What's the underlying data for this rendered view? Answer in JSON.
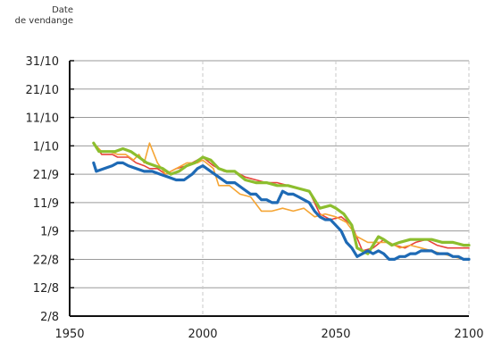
{
  "chart_data": {
    "type": "line",
    "title": "",
    "xlabel": "",
    "ylabel": [
      "Date",
      "de vendange"
    ],
    "xlim": [
      1950,
      2100
    ],
    "x_ticks": [
      1950,
      2000,
      2050,
      2100
    ],
    "ylim": [
      "2/8",
      "31/10"
    ],
    "y_ticks": [
      {
        "label": "2/8",
        "doy": 214
      },
      {
        "label": "12/8",
        "doy": 224
      },
      {
        "label": "22/8",
        "doy": 234
      },
      {
        "label": "1/9",
        "doy": 244
      },
      {
        "label": "11/9",
        "doy": 254
      },
      {
        "label": "21/9",
        "doy": 264
      },
      {
        "label": "1/10",
        "doy": 274
      },
      {
        "label": "11/10",
        "doy": 284
      },
      {
        "label": "21/10",
        "doy": 294
      },
      {
        "label": "31/10",
        "doy": 304
      }
    ],
    "grid": {
      "horizontal": true,
      "vertical": true
    },
    "series": [
      {
        "color": "#e8423a",
        "stroke": 1.6,
        "x": [
          1959,
          1962,
          1964,
          1966,
          1968,
          1970,
          1972,
          1975,
          1978,
          1980,
          1983,
          1986,
          1990,
          1994,
          1998,
          2000,
          2004,
          2008,
          2012,
          2016,
          2020,
          2024,
          2028,
          2032,
          2036,
          2040,
          2044,
          2048,
          2052,
          2056,
          2060,
          2064,
          2068,
          2072,
          2076,
          2080,
          2084,
          2088,
          2092,
          2096,
          2100
        ],
        "y": [
          275,
          271,
          271,
          271,
          270,
          270,
          270,
          268,
          267,
          266,
          266,
          264,
          266,
          267,
          269,
          270,
          267,
          265,
          265,
          263,
          262,
          261,
          261,
          260,
          259,
          258,
          250,
          248,
          249,
          246,
          237,
          238,
          241,
          239,
          238,
          240,
          241,
          239,
          238,
          238,
          238
        ]
      },
      {
        "color": "#f5a534",
        "stroke": 1.6,
        "x": [
          1959,
          1962,
          1965,
          1968,
          1971,
          1974,
          1976,
          1978,
          1980,
          1983,
          1986,
          1990,
          1994,
          1998,
          2000,
          2004,
          2006,
          2010,
          2014,
          2018,
          2022,
          2026,
          2030,
          2034,
          2038,
          2042,
          2046,
          2050,
          2054,
          2058,
          2062,
          2066,
          2070,
          2074,
          2078,
          2082,
          2086,
          2090,
          2094,
          2098,
          2100
        ],
        "y": [
          275,
          272,
          272,
          271,
          271,
          269,
          271,
          268,
          275,
          268,
          264,
          266,
          268,
          268,
          269,
          266,
          260,
          260,
          257,
          256,
          251,
          251,
          252,
          251,
          252,
          249,
          250,
          249,
          247,
          242,
          240,
          240,
          240,
          238,
          239,
          238,
          237,
          236,
          235,
          234,
          234
        ]
      },
      {
        "color": "#8cbe2e",
        "stroke": 3.2,
        "x": [
          1959,
          1961,
          1964,
          1967,
          1970,
          1973,
          1976,
          1979,
          1982,
          1985,
          1988,
          1991,
          1994,
          1997,
          2000,
          2003,
          2006,
          2009,
          2012,
          2016,
          2020,
          2024,
          2028,
          2032,
          2036,
          2040,
          2044,
          2048,
          2050,
          2053,
          2056,
          2058,
          2062,
          2066,
          2068,
          2071,
          2074,
          2078,
          2082,
          2086,
          2090,
          2094,
          2098,
          2100
        ],
        "y": [
          275,
          272,
          272,
          272,
          273,
          272,
          270,
          268,
          267,
          266,
          264,
          265,
          267,
          268,
          270,
          269,
          266,
          265,
          265,
          262,
          261,
          261,
          260,
          260,
          259,
          258,
          252,
          253,
          252,
          250,
          246,
          238,
          236,
          242,
          241,
          239,
          240,
          241,
          241,
          241,
          240,
          240,
          239,
          239
        ]
      },
      {
        "color": "#1e6ab5",
        "stroke": 3.2,
        "x": [
          1959,
          1960,
          1963,
          1966,
          1968,
          1970,
          1972,
          1975,
          1978,
          1981,
          1984,
          1987,
          1990,
          1993,
          1996,
          1998,
          2000,
          2003,
          2006,
          2009,
          2012,
          2015,
          2018,
          2020,
          2022,
          2024,
          2026,
          2028,
          2030,
          2032,
          2034,
          2036,
          2038,
          2040,
          2042,
          2044,
          2046,
          2048,
          2050,
          2052,
          2054,
          2056,
          2058,
          2060,
          2062,
          2064,
          2066,
          2068,
          2070,
          2072,
          2074,
          2076,
          2078,
          2080,
          2082,
          2084,
          2086,
          2088,
          2090,
          2092,
          2094,
          2096,
          2098,
          2100
        ],
        "y": [
          268,
          265,
          266,
          267,
          268,
          268,
          267,
          266,
          265,
          265,
          264,
          263,
          262,
          262,
          264,
          266,
          267,
          265,
          263,
          261,
          261,
          259,
          257,
          257,
          255,
          255,
          254,
          254,
          258,
          257,
          257,
          256,
          255,
          254,
          251,
          249,
          248,
          248,
          246,
          244,
          240,
          238,
          235,
          236,
          237,
          236,
          237,
          236,
          234,
          234,
          235,
          235,
          236,
          236,
          237,
          237,
          237,
          236,
          236,
          236,
          235,
          235,
          234,
          234
        ]
      }
    ]
  }
}
